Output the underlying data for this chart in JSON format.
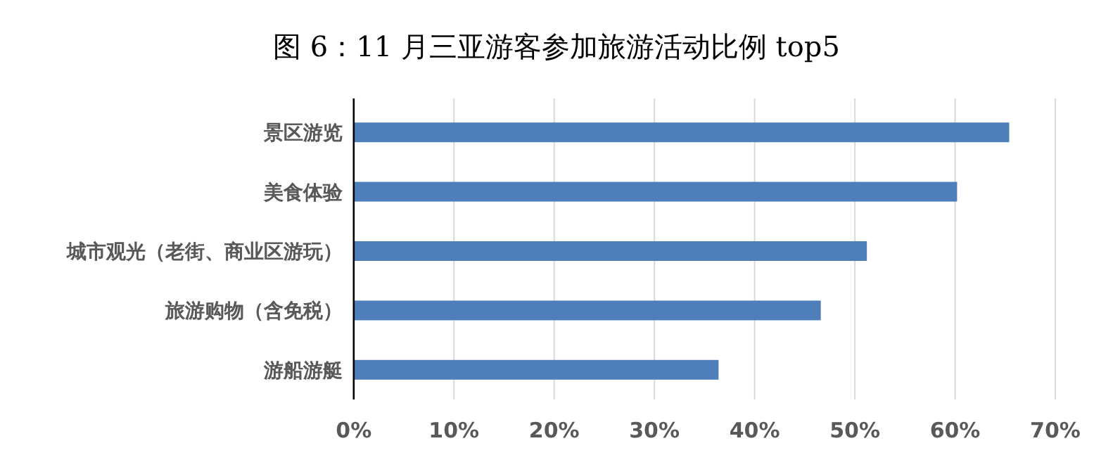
{
  "chart_data": {
    "type": "bar",
    "orientation": "horizontal",
    "title": "图 6：11 月三亚游客参加旅游活动比例 top5",
    "categories": [
      "景区游览",
      "美食体验",
      "城市观光（老街、商业区游玩）",
      "旅游购物（含免税）",
      "游船游艇"
    ],
    "values": [
      65.4,
      60.2,
      51.2,
      46.6,
      36.4
    ],
    "color": "#4e7fbb",
    "xlim": [
      0,
      70
    ],
    "xticks": [
      {
        "value": 0,
        "label": "0%"
      },
      {
        "value": 10,
        "label": "10%"
      },
      {
        "value": 20,
        "label": "20%"
      },
      {
        "value": 30,
        "label": "30%"
      },
      {
        "value": 40,
        "label": "40%"
      },
      {
        "value": 50,
        "label": "50%"
      },
      {
        "value": 60,
        "label": "60%"
      },
      {
        "value": 70,
        "label": "70%"
      }
    ],
    "grid": "x"
  }
}
